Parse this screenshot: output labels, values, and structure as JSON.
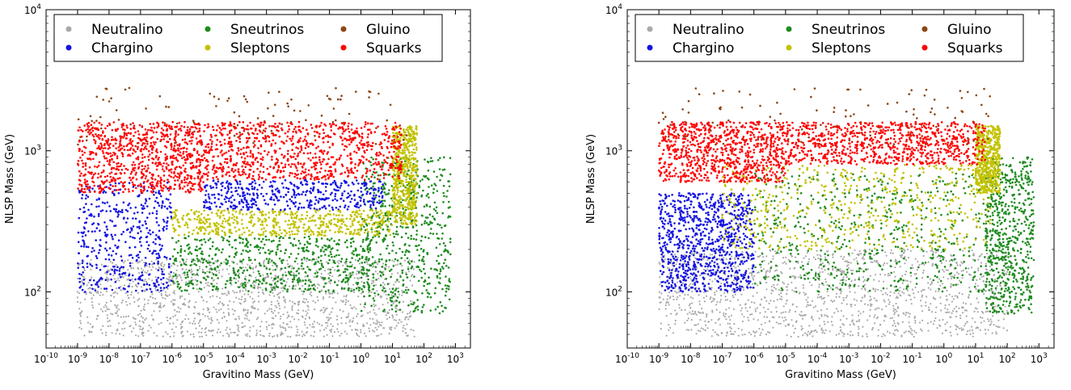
{
  "chart_data": [
    {
      "type": "scatter",
      "xlabel": "Gravitino Mass (GeV)",
      "ylabel": "NLSP Mass (GeV)",
      "xscale": "log",
      "yscale": "log",
      "xlim": [
        1e-10,
        3000
      ],
      "ylim": [
        40,
        10000
      ],
      "x_tick_exponents": [
        -10,
        -9,
        -8,
        -7,
        -6,
        -5,
        -4,
        -3,
        -2,
        -1,
        0,
        1,
        2,
        3
      ],
      "y_tick_exponents": [
        2,
        3,
        4
      ],
      "legend_position": "top",
      "grid": false,
      "series": [
        {
          "name": "Neutralino",
          "color": "#a9a9a9",
          "regions": [
            {
              "x_range": [
                1e-09,
                50
              ],
              "y_range": [
                48,
                170
              ],
              "ridge_y_at_max_x": 60
            }
          ]
        },
        {
          "name": "Chargino",
          "color": "#1414e0",
          "regions": [
            {
              "x_range": [
                1e-09,
                1e-06
              ],
              "y_range": [
                100,
                600
              ]
            },
            {
              "x_range": [
                1e-05,
                5
              ],
              "y_range": [
                380,
                620
              ]
            }
          ]
        },
        {
          "name": "Sneutrinos",
          "color": "#1e8c1e",
          "regions": [
            {
              "x_range": [
                1e-06,
                2
              ],
              "y_range": [
                100,
                250
              ]
            },
            {
              "x_range": [
                1,
                700
              ],
              "y_range": [
                70,
                900
              ]
            }
          ]
        },
        {
          "name": "Sleptons",
          "color": "#c2c200",
          "regions": [
            {
              "x_range": [
                1e-06,
                10
              ],
              "y_range": [
                250,
                380
              ]
            },
            {
              "x_range": [
                10,
                60
              ],
              "y_range": [
                300,
                1500
              ]
            }
          ]
        },
        {
          "name": "Gluino",
          "color": "#8b4513",
          "regions": [
            {
              "x_range": [
                1e-09,
                30
              ],
              "y_range": [
                1100,
                2800
              ]
            }
          ]
        },
        {
          "name": "Squarks",
          "color": "#ff0000",
          "regions": [
            {
              "x_range": [
                1e-09,
                1e-05
              ],
              "y_range": [
                500,
                1600
              ]
            },
            {
              "x_range": [
                1e-05,
                20
              ],
              "y_range": [
                620,
                1600
              ]
            }
          ]
        }
      ]
    },
    {
      "type": "scatter",
      "xlabel": "Gravitino Mass (GeV)",
      "ylabel": "NLSP Mass (GeV)",
      "xscale": "log",
      "yscale": "log",
      "xlim": [
        1e-10,
        3000
      ],
      "ylim": [
        40,
        10000
      ],
      "x_tick_exponents": [
        -10,
        -9,
        -8,
        -7,
        -6,
        -5,
        -4,
        -3,
        -2,
        -1,
        0,
        1,
        2,
        3
      ],
      "y_tick_exponents": [
        2,
        3,
        4
      ],
      "legend_position": "top",
      "grid": false,
      "series": [
        {
          "name": "Neutralino",
          "color": "#a9a9a9",
          "regions": [
            {
              "x_range": [
                1e-09,
                100
              ],
              "y_range": [
                48,
                200
              ]
            }
          ]
        },
        {
          "name": "Chargino",
          "color": "#1414e0",
          "regions": [
            {
              "x_range": [
                1e-09,
                1e-06
              ],
              "y_range": [
                100,
                500
              ]
            }
          ]
        },
        {
          "name": "Sneutrinos",
          "color": "#1e8c1e",
          "regions": [
            {
              "x_range": [
                1e-06,
                100
              ],
              "y_range": [
                100,
                700
              ]
            },
            {
              "x_range": [
                20,
                700
              ],
              "y_range": [
                70,
                900
              ]
            }
          ]
        },
        {
          "name": "Sleptons",
          "color": "#c2c200",
          "regions": [
            {
              "x_range": [
                1e-07,
                30
              ],
              "y_range": [
                200,
                800
              ]
            },
            {
              "x_range": [
                10,
                60
              ],
              "y_range": [
                500,
                1500
              ]
            }
          ]
        },
        {
          "name": "Gluino",
          "color": "#8b4513",
          "regions": [
            {
              "x_range": [
                1e-09,
                30
              ],
              "y_range": [
                1100,
                2800
              ]
            }
          ]
        },
        {
          "name": "Squarks",
          "color": "#ff0000",
          "regions": [
            {
              "x_range": [
                1e-09,
                1e-05
              ],
              "y_range": [
                600,
                1600
              ]
            },
            {
              "x_range": [
                1e-05,
                20
              ],
              "y_range": [
                800,
                1600
              ]
            }
          ]
        }
      ]
    }
  ]
}
